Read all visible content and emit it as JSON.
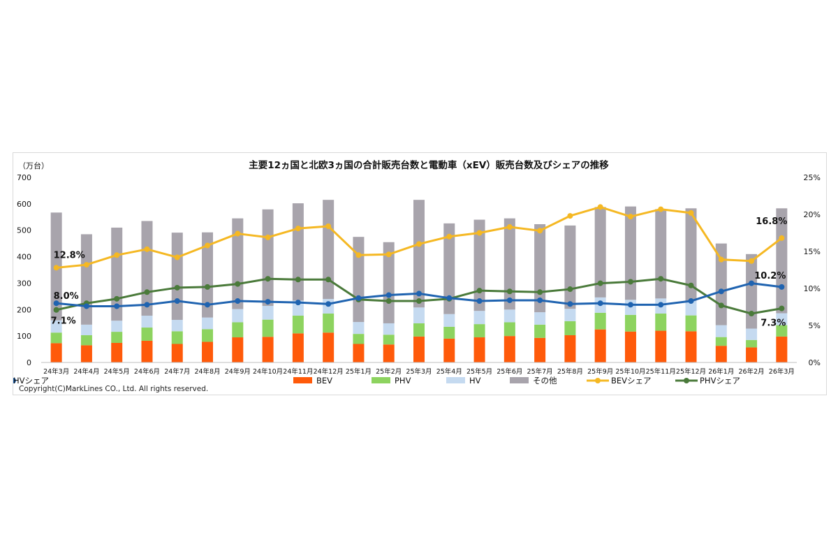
{
  "chart_data": {
    "type": "bar",
    "title": "主要12ヵ国と北欧3ヵ国の合計販売台数と電動車（xEV）販売台数及びシェアの推移",
    "ylabel_left": "（万台）",
    "ylim_left": [
      0,
      700
    ],
    "yticks_left": [
      "0",
      "100",
      "200",
      "300",
      "400",
      "500",
      "600",
      "700"
    ],
    "ylim_right": [
      0,
      25
    ],
    "yticks_right": [
      "0%",
      "5%",
      "10%",
      "15%",
      "20%",
      "25%"
    ],
    "grid": false,
    "legend_position": "bottom",
    "stacked": true,
    "categories": [
      "24年3月",
      "24年4月",
      "24年5月",
      "24年6月",
      "24年7月",
      "24年8月",
      "24年9月",
      "24年10月",
      "24年11月",
      "24年12月",
      "25年1月",
      "25年2月",
      "25年3月",
      "25年4月",
      "25年5月",
      "25年6月",
      "25年7月",
      "25年8月",
      "25年9月",
      "25年10月",
      "25年11月",
      "25年12月",
      "26年1月",
      "26年2月",
      "26年3月"
    ],
    "bar_series": [
      {
        "name": "BEV",
        "color": "#ff5a0a",
        "values": [
          73,
          65,
          74,
          82,
          70,
          78,
          95,
          97,
          110,
          113,
          70,
          68,
          98,
          90,
          95,
          100,
          93,
          103,
          125,
          117,
          120,
          118,
          63,
          57,
          98
        ]
      },
      {
        "name": "PHV",
        "color": "#8dd35f",
        "values": [
          40,
          38,
          42,
          50,
          48,
          48,
          57,
          65,
          67,
          72,
          38,
          37,
          50,
          45,
          50,
          52,
          50,
          53,
          63,
          63,
          65,
          60,
          33,
          28,
          43
        ]
      },
      {
        "name": "HV",
        "color": "#c5daf0",
        "values": [
          46,
          40,
          42,
          45,
          43,
          44,
          50,
          52,
          57,
          55,
          45,
          43,
          60,
          48,
          50,
          48,
          47,
          47,
          58,
          57,
          57,
          55,
          45,
          43,
          45
        ]
      },
      {
        "name": "その他",
        "color": "#a8a4ac",
        "values": [
          408,
          342,
          352,
          358,
          330,
          322,
          343,
          365,
          368,
          375,
          322,
          307,
          407,
          343,
          345,
          345,
          333,
          315,
          342,
          353,
          338,
          350,
          309,
          282,
          397
        ]
      }
    ],
    "line_series": [
      {
        "name": "BEVシェア",
        "color": "#f5b823",
        "values": [
          12.8,
          13.2,
          14.5,
          15.3,
          14.2,
          15.8,
          17.4,
          16.9,
          18.1,
          18.4,
          14.5,
          14.6,
          16.0,
          17.0,
          17.5,
          18.3,
          17.8,
          19.8,
          21.0,
          19.7,
          20.7,
          20.2,
          13.9,
          13.7,
          16.8
        ]
      },
      {
        "name": "PHVシェア",
        "color": "#4a7a3a",
        "values": [
          7.1,
          8.0,
          8.6,
          9.5,
          10.1,
          10.2,
          10.6,
          11.3,
          11.2,
          11.2,
          8.5,
          8.3,
          8.3,
          8.6,
          9.7,
          9.6,
          9.5,
          9.9,
          10.7,
          10.9,
          11.3,
          10.4,
          7.7,
          6.6,
          7.3
        ]
      },
      {
        "name": "HVシェア",
        "color": "#1f63b0",
        "values": [
          8.0,
          7.6,
          7.6,
          7.8,
          8.3,
          7.8,
          8.3,
          8.2,
          8.1,
          7.9,
          8.7,
          9.1,
          9.3,
          8.7,
          8.3,
          8.4,
          8.4,
          7.9,
          8.0,
          7.8,
          7.8,
          8.3,
          9.6,
          10.7,
          10.2
        ]
      }
    ],
    "annotations": [
      {
        "text": "12.8%",
        "series": "BEVシェア",
        "index": 0
      },
      {
        "text": "8.0%",
        "series": "HVシェア",
        "index": 0
      },
      {
        "text": "7.1%",
        "series": "PHVシェア",
        "index": 0
      },
      {
        "text": "16.8%",
        "series": "BEVシェア",
        "index": 24
      },
      {
        "text": "10.2%",
        "series": "HVシェア",
        "index": 24
      },
      {
        "text": "7.3%",
        "series": "PHVシェア",
        "index": 24
      }
    ]
  },
  "copyright": "Copyright(C)MarkLines CO., Ltd. All rights reserved."
}
